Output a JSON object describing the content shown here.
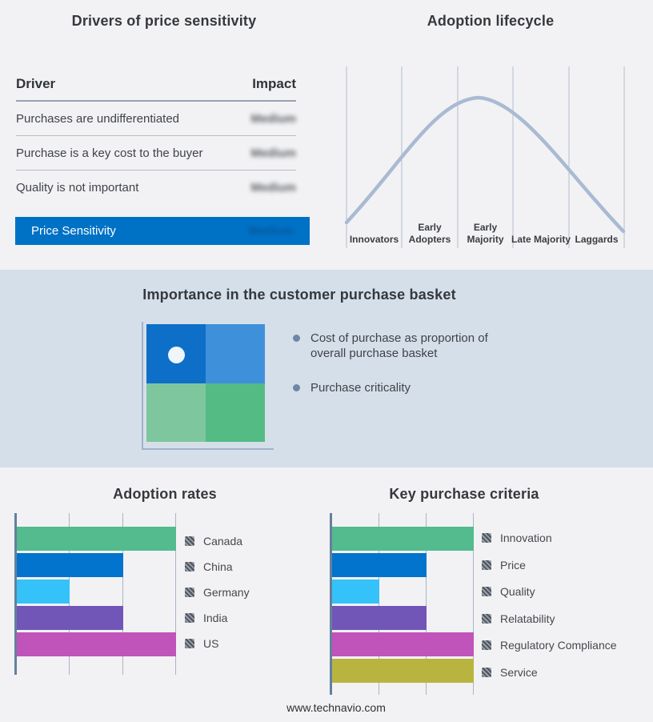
{
  "colors": {
    "accent_blue": "#0072c6",
    "page_bg": "#f2f2f4",
    "band_bg": "#d5dfe9",
    "curve": "#a9bad2",
    "gridline": "#b3bdd0"
  },
  "drivers_table": {
    "title": "Drivers of price sensitivity",
    "col_driver": "Driver",
    "col_impact": "Impact",
    "rows": [
      {
        "driver": "Purchases are undifferentiated",
        "impact": "Medium"
      },
      {
        "driver": "Purchase is a key cost to the buyer",
        "impact": "Medium"
      },
      {
        "driver": "Quality is not important",
        "impact": "Medium"
      }
    ],
    "highlight_row": {
      "driver": "Price Sensitivity",
      "impact": "Medium"
    }
  },
  "basket": {
    "title": "Importance in the customer purchase basket",
    "bullets": [
      "Cost of purchase as proportion of overall purchase basket",
      "Purchase criticality"
    ],
    "matrix_colors": {
      "top_left": "#0e6fc8",
      "top_right": "#3e90da",
      "bottom_left": "#7ec69e",
      "bottom_right": "#54bb85"
    },
    "marker_quadrant": "top_left"
  },
  "chart_data": [
    {
      "type": "line",
      "title": "Adoption lifecycle",
      "x": [
        "Innovators",
        "Early Adopters",
        "Early Majority",
        "Late Majority",
        "Laggards"
      ],
      "shape": "bell_curve",
      "peak_stage": "Early Majority",
      "relative_heights": [
        0.05,
        0.55,
        1.0,
        0.62,
        0.05
      ],
      "grid": true,
      "legend_position": "none"
    },
    {
      "type": "bar",
      "title": "Adoption rates",
      "orientation": "horizontal",
      "categories": [
        "Canada",
        "China",
        "Germany",
        "India",
        "US"
      ],
      "values": [
        3,
        2,
        1,
        2,
        3
      ],
      "xlim": [
        0,
        3
      ],
      "colors": [
        "#53bb8d",
        "#0274cd",
        "#35c2f8",
        "#7156b8",
        "#c054ba"
      ],
      "grid": true,
      "legend_position": "right"
    },
    {
      "type": "bar",
      "title": "Key purchase criteria",
      "orientation": "horizontal",
      "categories": [
        "Innovation",
        "Price",
        "Quality",
        "Relatability",
        "Regulatory Compliance",
        "Service"
      ],
      "values": [
        3,
        2,
        1,
        2,
        3,
        3
      ],
      "xlim": [
        0,
        3
      ],
      "colors": [
        "#53bb8d",
        "#0274cd",
        "#35c2f8",
        "#7156b8",
        "#c054ba",
        "#b9b43f"
      ],
      "grid": true,
      "legend_position": "right"
    }
  ],
  "footer": {
    "url": "www.technavio.com"
  }
}
